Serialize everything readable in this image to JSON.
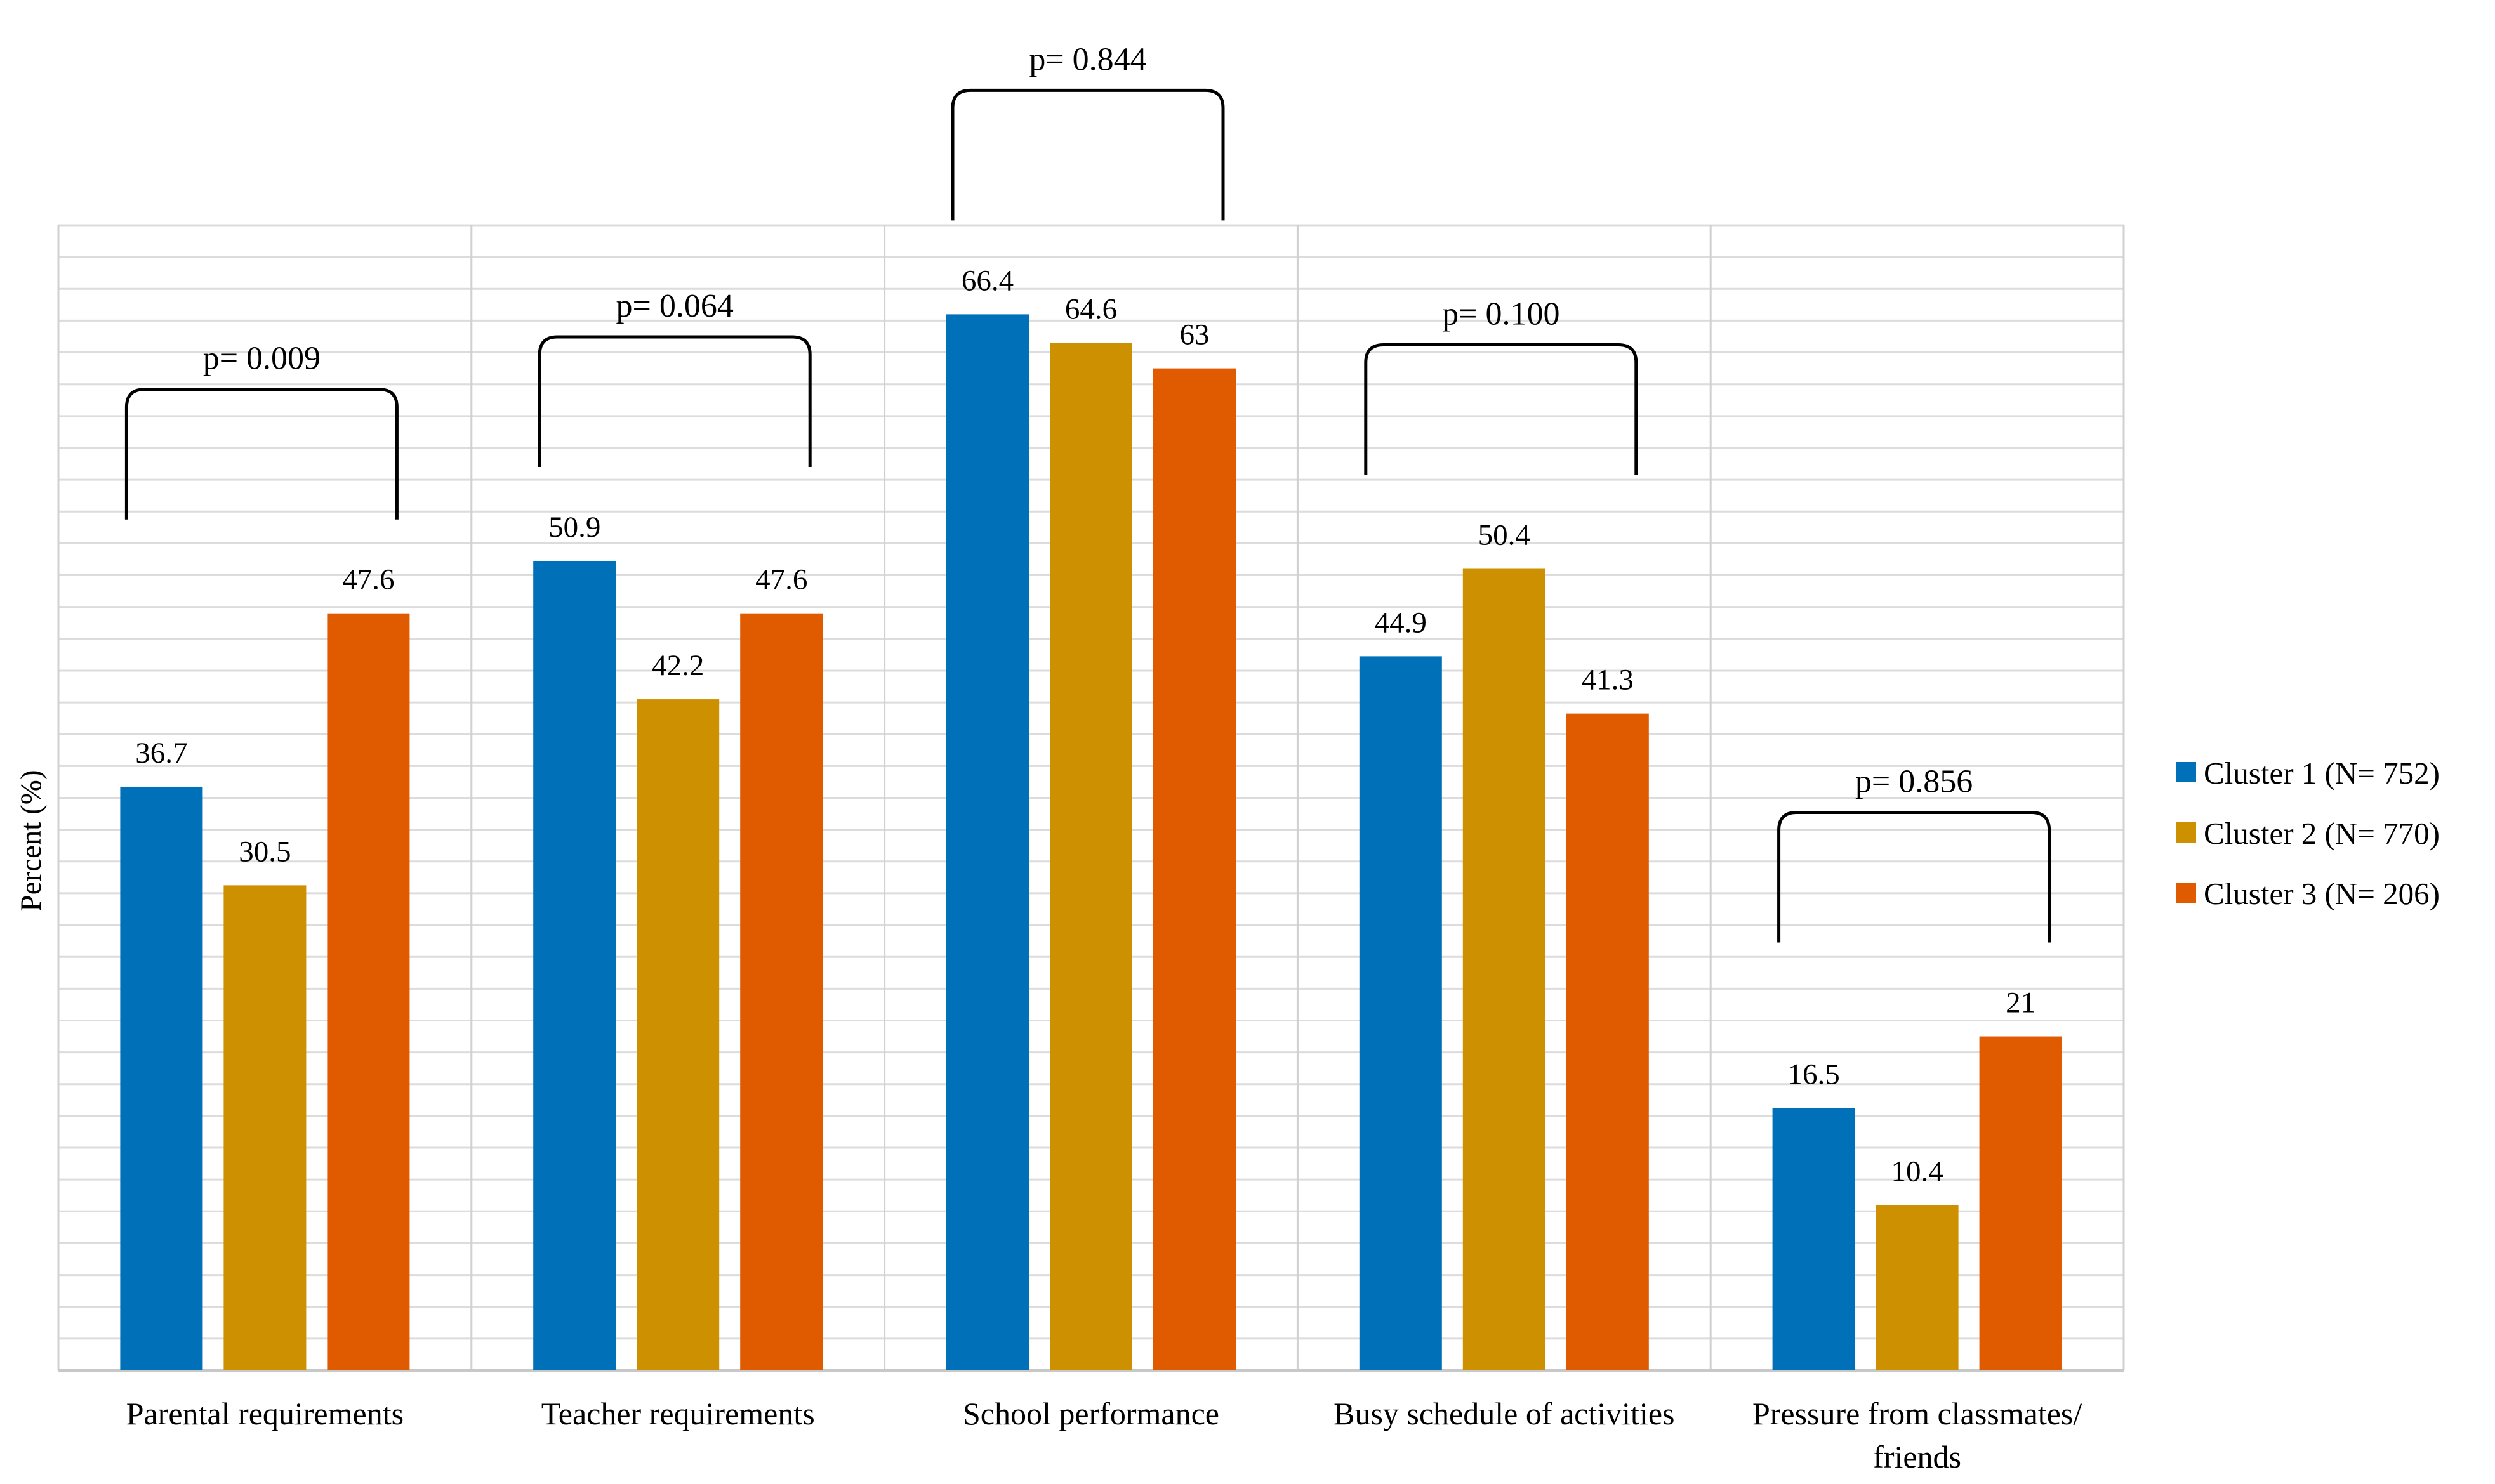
{
  "chart_data": {
    "type": "bar",
    "ylabel": "Percent (%)",
    "xlabel": "",
    "ylim": [
      0,
      72
    ],
    "grid": true,
    "legend_position": "right",
    "categories": [
      [
        "Parental requirements"
      ],
      [
        "Teacher requirements"
      ],
      [
        "School performance"
      ],
      [
        "Busy schedule of activities"
      ],
      [
        "Pressure from classmates/",
        "friends"
      ]
    ],
    "series": [
      {
        "name": "Cluster 1 (N= 752)",
        "color": "#0070B8",
        "values": [
          36.7,
          50.9,
          66.4,
          44.9,
          16.5
        ],
        "labels": [
          "36.7",
          "50.9",
          "66.4",
          "44.9",
          "16.5"
        ]
      },
      {
        "name": "Cluster 2 (N= 770)",
        "color": "#CC9000",
        "values": [
          30.5,
          42.2,
          64.6,
          50.4,
          10.4
        ],
        "labels": [
          "30.5",
          "42.2",
          "64.6",
          "50.4",
          "10.4"
        ]
      },
      {
        "name": "Cluster 3 (N= 206)",
        "color": "#E05A00",
        "values": [
          47.6,
          47.6,
          63,
          41.3,
          21
        ],
        "labels": [
          "47.6",
          "47.6",
          "63",
          "41.3",
          "21"
        ]
      }
    ],
    "annotations": [
      {
        "category_index": 0,
        "text": "p= 0.009"
      },
      {
        "category_index": 1,
        "text": "p= 0.064"
      },
      {
        "category_index": 2,
        "text": "p= 0.844"
      },
      {
        "category_index": 3,
        "text": "p= 0.100"
      },
      {
        "category_index": 4,
        "text": "p= 0.856"
      }
    ]
  }
}
